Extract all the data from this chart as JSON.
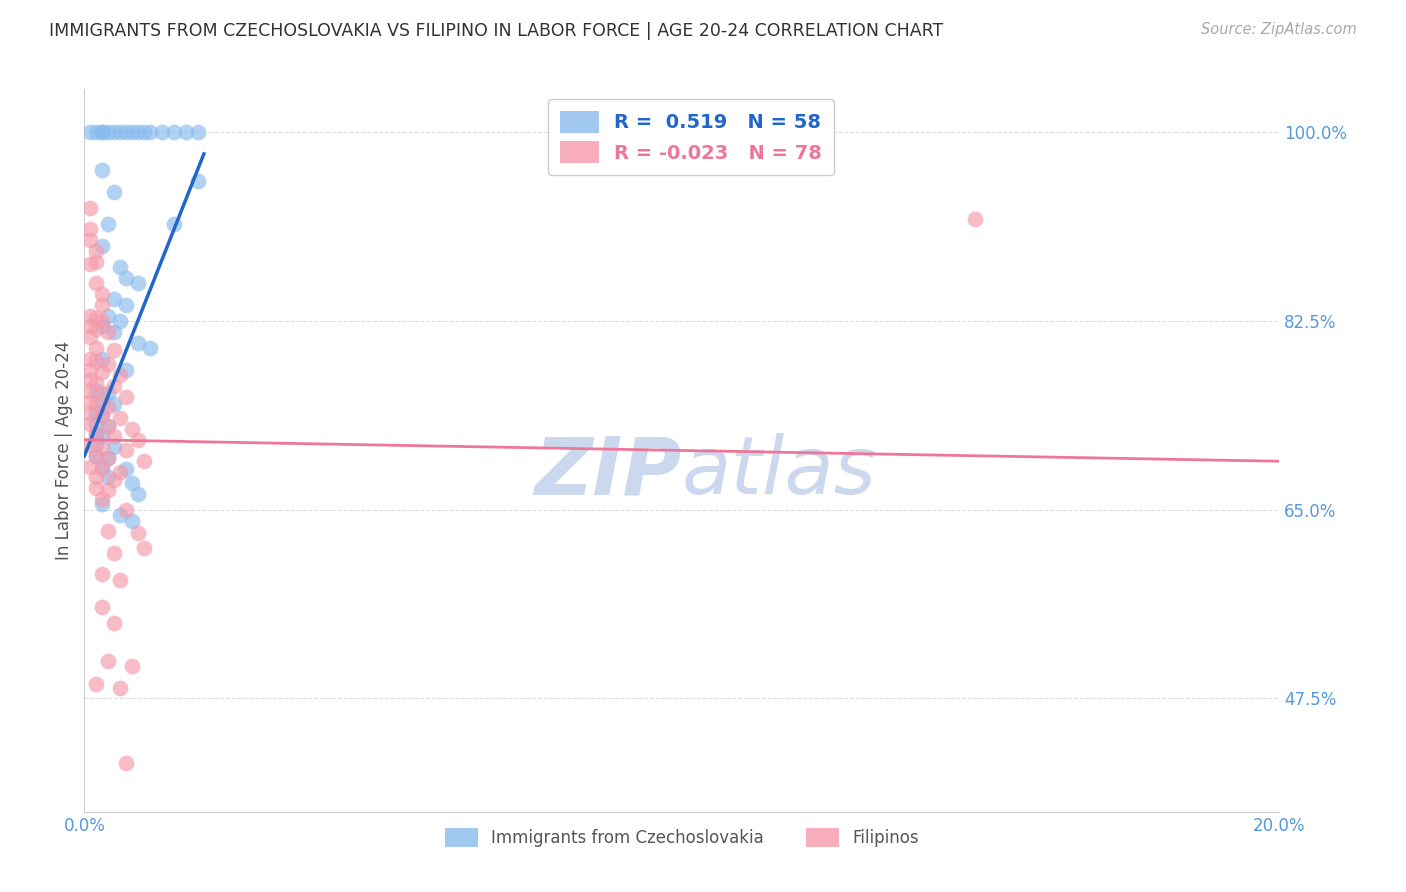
{
  "title": "IMMIGRANTS FROM CZECHOSLOVAKIA VS FILIPINO IN LABOR FORCE | AGE 20-24 CORRELATION CHART",
  "source": "Source: ZipAtlas.com",
  "ylabel": "In Labor Force | Age 20-24",
  "yticks": [
    0.475,
    0.65,
    0.825,
    1.0
  ],
  "ytick_labels": [
    "47.5%",
    "65.0%",
    "82.5%",
    "100.0%"
  ],
  "xtick_vals": [
    0.0,
    0.04,
    0.08,
    0.12,
    0.16,
    0.2
  ],
  "xtick_labels": [
    "0.0%",
    "",
    "",
    "",
    "",
    "20.0%"
  ],
  "legend_R1": "0.519",
  "legend_N1": "58",
  "legend_R2": "-0.023",
  "legend_N2": "78",
  "legend_label1": "Immigrants from Czechoslovakia",
  "legend_label2": "Filipinos",
  "blue_scatter": [
    [
      0.001,
      1.0
    ],
    [
      0.002,
      1.0
    ],
    [
      0.003,
      1.0
    ],
    [
      0.003,
      1.0
    ],
    [
      0.004,
      1.0
    ],
    [
      0.005,
      1.0
    ],
    [
      0.006,
      1.0
    ],
    [
      0.007,
      1.0
    ],
    [
      0.008,
      1.0
    ],
    [
      0.009,
      1.0
    ],
    [
      0.01,
      1.0
    ],
    [
      0.011,
      1.0
    ],
    [
      0.013,
      1.0
    ],
    [
      0.015,
      1.0
    ],
    [
      0.017,
      1.0
    ],
    [
      0.019,
      1.0
    ],
    [
      0.003,
      0.965
    ],
    [
      0.005,
      0.945
    ],
    [
      0.004,
      0.915
    ],
    [
      0.003,
      0.895
    ],
    [
      0.006,
      0.875
    ],
    [
      0.007,
      0.865
    ],
    [
      0.009,
      0.86
    ],
    [
      0.005,
      0.845
    ],
    [
      0.007,
      0.84
    ],
    [
      0.004,
      0.83
    ],
    [
      0.006,
      0.825
    ],
    [
      0.003,
      0.82
    ],
    [
      0.005,
      0.815
    ],
    [
      0.009,
      0.805
    ],
    [
      0.011,
      0.8
    ],
    [
      0.003,
      0.79
    ],
    [
      0.007,
      0.78
    ],
    [
      0.002,
      0.76
    ],
    [
      0.004,
      0.758
    ],
    [
      0.003,
      0.75
    ],
    [
      0.005,
      0.748
    ],
    [
      0.002,
      0.74
    ],
    [
      0.003,
      0.738
    ],
    [
      0.002,
      0.73
    ],
    [
      0.004,
      0.728
    ],
    [
      0.002,
      0.72
    ],
    [
      0.003,
      0.718
    ],
    [
      0.002,
      0.71
    ],
    [
      0.005,
      0.708
    ],
    [
      0.002,
      0.7
    ],
    [
      0.004,
      0.698
    ],
    [
      0.003,
      0.69
    ],
    [
      0.007,
      0.688
    ],
    [
      0.004,
      0.68
    ],
    [
      0.008,
      0.675
    ],
    [
      0.009,
      0.665
    ],
    [
      0.003,
      0.655
    ],
    [
      0.006,
      0.645
    ],
    [
      0.008,
      0.64
    ],
    [
      0.015,
      0.915
    ],
    [
      0.019,
      0.955
    ]
  ],
  "pink_scatter": [
    [
      0.001,
      0.93
    ],
    [
      0.001,
      0.91
    ],
    [
      0.001,
      0.9
    ],
    [
      0.002,
      0.89
    ],
    [
      0.002,
      0.88
    ],
    [
      0.001,
      0.878
    ],
    [
      0.002,
      0.86
    ],
    [
      0.003,
      0.85
    ],
    [
      0.003,
      0.84
    ],
    [
      0.001,
      0.83
    ],
    [
      0.002,
      0.828
    ],
    [
      0.003,
      0.825
    ],
    [
      0.001,
      0.82
    ],
    [
      0.002,
      0.818
    ],
    [
      0.004,
      0.815
    ],
    [
      0.001,
      0.81
    ],
    [
      0.002,
      0.8
    ],
    [
      0.005,
      0.798
    ],
    [
      0.001,
      0.79
    ],
    [
      0.002,
      0.788
    ],
    [
      0.004,
      0.785
    ],
    [
      0.001,
      0.78
    ],
    [
      0.003,
      0.778
    ],
    [
      0.006,
      0.775
    ],
    [
      0.001,
      0.77
    ],
    [
      0.002,
      0.768
    ],
    [
      0.005,
      0.765
    ],
    [
      0.001,
      0.76
    ],
    [
      0.003,
      0.758
    ],
    [
      0.007,
      0.755
    ],
    [
      0.001,
      0.75
    ],
    [
      0.002,
      0.748
    ],
    [
      0.004,
      0.745
    ],
    [
      0.001,
      0.74
    ],
    [
      0.003,
      0.738
    ],
    [
      0.006,
      0.735
    ],
    [
      0.001,
      0.73
    ],
    [
      0.004,
      0.728
    ],
    [
      0.008,
      0.725
    ],
    [
      0.002,
      0.72
    ],
    [
      0.005,
      0.718
    ],
    [
      0.009,
      0.715
    ],
    [
      0.001,
      0.71
    ],
    [
      0.003,
      0.708
    ],
    [
      0.007,
      0.705
    ],
    [
      0.002,
      0.7
    ],
    [
      0.004,
      0.698
    ],
    [
      0.01,
      0.695
    ],
    [
      0.001,
      0.69
    ],
    [
      0.003,
      0.688
    ],
    [
      0.006,
      0.685
    ],
    [
      0.002,
      0.68
    ],
    [
      0.005,
      0.678
    ],
    [
      0.002,
      0.67
    ],
    [
      0.004,
      0.668
    ],
    [
      0.003,
      0.66
    ],
    [
      0.007,
      0.65
    ],
    [
      0.004,
      0.63
    ],
    [
      0.009,
      0.628
    ],
    [
      0.005,
      0.61
    ],
    [
      0.01,
      0.615
    ],
    [
      0.003,
      0.59
    ],
    [
      0.006,
      0.585
    ],
    [
      0.003,
      0.56
    ],
    [
      0.005,
      0.545
    ],
    [
      0.004,
      0.51
    ],
    [
      0.008,
      0.505
    ],
    [
      0.002,
      0.488
    ],
    [
      0.006,
      0.485
    ],
    [
      0.007,
      0.415
    ],
    [
      0.149,
      0.92
    ]
  ],
  "blue_line_x": [
    0.0,
    0.02
  ],
  "blue_line_y": [
    0.7,
    0.98
  ],
  "pink_line_x": [
    0.0,
    0.2
  ],
  "pink_line_y": [
    0.715,
    0.695
  ],
  "xlim": [
    0.0,
    0.2
  ],
  "ylim": [
    0.37,
    1.04
  ],
  "background_color": "#ffffff",
  "grid_color": "#dddddd",
  "title_color": "#333333",
  "axis_label_color": "#5599dd",
  "blue_dot_color": "#88bbee",
  "pink_dot_color": "#f599aa",
  "blue_line_color": "#2266cc",
  "pink_line_color": "#ee7799",
  "watermark_text": "ZIP",
  "watermark_text2": "atlas",
  "watermark_color": "#ccd8ee"
}
